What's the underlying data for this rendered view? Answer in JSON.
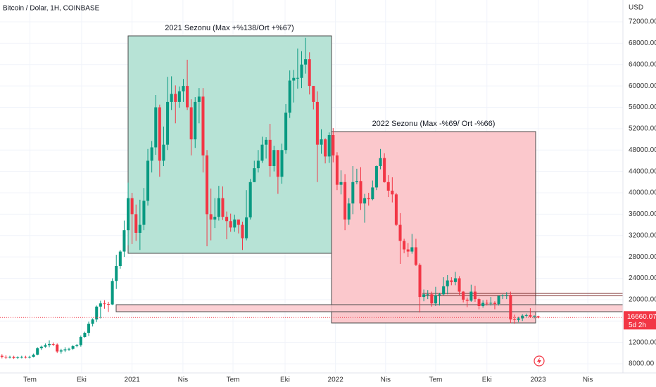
{
  "chart_data": {
    "type": "candlestick",
    "title": "Bitcoin / Dolar, 1H, COINBASE",
    "currency": "USD",
    "up_color": "#089981",
    "down_color": "#f23645",
    "annotations": [
      "2021 Sezonu (Max +%138/Ort +%67)",
      "2022 Sezonu (Max -%69/ Ort -%66)"
    ],
    "last_price": 16660.07,
    "countdown": "5d 2h",
    "xlim": [
      -0.5,
      157.5
    ],
    "xticks": [
      {
        "value": 7.1,
        "label": "Tem"
      },
      {
        "value": 20.2,
        "label": "Eki"
      },
      {
        "value": 33,
        "label": "2021"
      },
      {
        "value": 45.9,
        "label": "Nis"
      },
      {
        "value": 58.6,
        "label": "Tem"
      },
      {
        "value": 71.8,
        "label": "Eki"
      },
      {
        "value": 84.6,
        "label": "2022"
      },
      {
        "value": 97.3,
        "label": "Nis"
      },
      {
        "value": 110,
        "label": "Tem"
      },
      {
        "value": 123,
        "label": "Eki"
      },
      {
        "value": 136,
        "label": "2023"
      },
      {
        "value": 148.6,
        "label": "Nis"
      }
    ],
    "ylim": [
      6290,
      76080
    ],
    "yticks": [
      {
        "value": 8000,
        "label": "8000.00"
      },
      {
        "value": 12000,
        "label": "12000.00"
      },
      {
        "value": 16000,
        "label": "16000.00"
      },
      {
        "value": 20000,
        "label": "20000.00"
      },
      {
        "value": 24000,
        "label": "24000.00"
      },
      {
        "value": 28000,
        "label": "28000.00"
      },
      {
        "value": 32000,
        "label": "32000.00"
      },
      {
        "value": 36000,
        "label": "36000.00"
      },
      {
        "value": 40000,
        "label": "40000.00"
      },
      {
        "value": 44000,
        "label": "44000.00"
      },
      {
        "value": 48000,
        "label": "48000.00"
      },
      {
        "value": 52000,
        "label": "52000.00"
      },
      {
        "value": 56000,
        "label": "56000.00"
      },
      {
        "value": 60000,
        "label": "60000.00"
      },
      {
        "value": 64000,
        "label": "64000.00"
      },
      {
        "value": 68000,
        "label": "68000.00"
      },
      {
        "value": 72000,
        "label": "72000.00"
      }
    ],
    "open": [
      9500,
      9300,
      9200,
      9300,
      9100,
      9200,
      9300,
      9200,
      9300,
      9700,
      10900,
      11200,
      11500,
      11700,
      11600,
      10300,
      10500,
      10700,
      10800,
      11300,
      11500,
      13000,
      13800,
      15500,
      16300,
      18700,
      19300,
      19200,
      19100,
      23500,
      26300,
      29000,
      33000,
      39000,
      36000,
      32500,
      34000,
      38500,
      46000,
      48500,
      56000,
      46000,
      49000,
      57000,
      58500,
      57000,
      59000,
      60000,
      56000,
      50000,
      57000,
      58000,
      47000,
      36000,
      35000,
      35500,
      39000,
      35500,
      34700,
      33500,
      35000,
      34000,
      31500,
      35400,
      42000,
      44600,
      46000,
      49000,
      49900,
      45000,
      48000,
      43000,
      48000,
      55000,
      61000,
      61500,
      61500,
      64000,
      65000,
      60000,
      57000,
      49000,
      50000,
      46800,
      50800,
      47000,
      41500,
      42000,
      35000,
      38000,
      42000,
      42200,
      38000,
      39000,
      38800,
      41000,
      45000,
      46500,
      42000,
      40400,
      39700,
      34000,
      31000,
      29400,
      29000,
      29800,
      26500,
      20500,
      21000,
      21000,
      19300,
      20800,
      21000,
      22500,
      23600,
      23300,
      24000,
      21500,
      20000,
      19800,
      21500,
      20100,
      18800,
      19400,
      19300,
      19400,
      19200,
      20700,
      20800,
      20900,
      16300,
      16200,
      16500,
      17000,
      17100,
      16800,
      16900
    ],
    "high": [
      9800,
      9600,
      9500,
      9500,
      9400,
      9500,
      9500,
      9500,
      9900,
      11100,
      11400,
      11800,
      12400,
      12000,
      11800,
      10800,
      11100,
      11000,
      11500,
      11700,
      13300,
      14000,
      15900,
      16500,
      18900,
      19800,
      19900,
      19600,
      24000,
      28400,
      29300,
      34800,
      41900,
      40000,
      37800,
      38700,
      40900,
      48200,
      49700,
      58300,
      56500,
      52400,
      61700,
      61800,
      60100,
      59900,
      61300,
      64900,
      57500,
      57900,
      59600,
      59600,
      48000,
      40800,
      39000,
      41300,
      41200,
      36500,
      36100,
      35900,
      35000,
      34600,
      40500,
      42600,
      46000,
      48000,
      50500,
      50400,
      52900,
      48800,
      48000,
      49200,
      56600,
      62900,
      63000,
      67000,
      66500,
      69000,
      66300,
      60000,
      59000,
      51900,
      50200,
      51300,
      52100,
      47600,
      44200,
      43500,
      39000,
      45000,
      44500,
      44800,
      39800,
      40000,
      42300,
      45100,
      48200,
      47400,
      43300,
      42900,
      40000,
      36200,
      31400,
      30600,
      32300,
      31400,
      26800,
      21900,
      21800,
      21500,
      22400,
      21300,
      24200,
      24600,
      24200,
      25200,
      24400,
      21600,
      20400,
      22800,
      22600,
      20400,
      19900,
      20000,
      20500,
      19700,
      20800,
      21000,
      21400,
      21500,
      17200,
      16800,
      17300,
      17400,
      18400,
      17100,
      17000
    ],
    "low": [
      9000,
      8900,
      9000,
      8900,
      8900,
      9000,
      9000,
      9000,
      9200,
      9600,
      10600,
      11000,
      11100,
      11300,
      10000,
      9900,
      10200,
      10400,
      10600,
      11100,
      11200,
      12900,
      13200,
      15000,
      15800,
      16500,
      18300,
      17700,
      19000,
      22000,
      25800,
      28000,
      30200,
      30400,
      31000,
      29300,
      33000,
      37600,
      43800,
      47100,
      43000,
      45000,
      48000,
      55500,
      53000,
      55900,
      57000,
      55500,
      47000,
      48400,
      53000,
      43800,
      30000,
      31100,
      33400,
      34800,
      34900,
      31300,
      32700,
      32700,
      32400,
      29300,
      31100,
      35000,
      42000,
      43800,
      45600,
      46400,
      43000,
      44000,
      39800,
      41700,
      47300,
      54000,
      56900,
      59500,
      59600,
      62300,
      58400,
      55600,
      42000,
      47300,
      45500,
      45600,
      45700,
      40500,
      39700,
      33000,
      34000,
      36000,
      41600,
      36800,
      34400,
      37600,
      38600,
      40500,
      44400,
      41900,
      39200,
      38200,
      33800,
      26700,
      28700,
      28000,
      28600,
      26300,
      17600,
      19700,
      20100,
      18700,
      18800,
      18900,
      20800,
      21000,
      22700,
      22700,
      20900,
      19500,
      18600,
      19600,
      19600,
      18200,
      18500,
      18900,
      18900,
      18200,
      18900,
      20100,
      20100,
      15600,
      15500,
      15800,
      16000,
      16700,
      16600,
      16500,
      16500
    ],
    "close": [
      9300,
      9200,
      9300,
      9100,
      9200,
      9300,
      9200,
      9300,
      9700,
      10900,
      11200,
      11500,
      11700,
      11600,
      10300,
      10500,
      10700,
      10800,
      11300,
      11500,
      13000,
      13800,
      15500,
      16300,
      18700,
      19300,
      19200,
      19100,
      23500,
      26300,
      29000,
      33000,
      39000,
      36000,
      32500,
      34000,
      38500,
      46000,
      48500,
      56000,
      46000,
      49000,
      57000,
      58500,
      57000,
      59000,
      60000,
      56000,
      50000,
      57000,
      58000,
      47000,
      36000,
      35000,
      35500,
      39000,
      35500,
      34700,
      33500,
      35000,
      34000,
      31500,
      35400,
      42000,
      44600,
      46000,
      49000,
      49900,
      45000,
      48000,
      43000,
      48000,
      55000,
      61000,
      61500,
      61500,
      64000,
      65000,
      60000,
      57000,
      49000,
      50000,
      46800,
      50800,
      47000,
      41500,
      42000,
      35000,
      38000,
      42000,
      42200,
      38000,
      39000,
      38800,
      41000,
      45000,
      46500,
      42000,
      40400,
      39700,
      34000,
      31000,
      29400,
      29000,
      29800,
      26500,
      20500,
      21000,
      21000,
      19300,
      20800,
      21000,
      22500,
      23600,
      23300,
      24000,
      21500,
      20000,
      19800,
      21500,
      20100,
      18800,
      19400,
      19300,
      19400,
      19200,
      20700,
      20800,
      20900,
      16300,
      16200,
      16500,
      17000,
      17100,
      16800,
      16900,
      16660
    ]
  }
}
